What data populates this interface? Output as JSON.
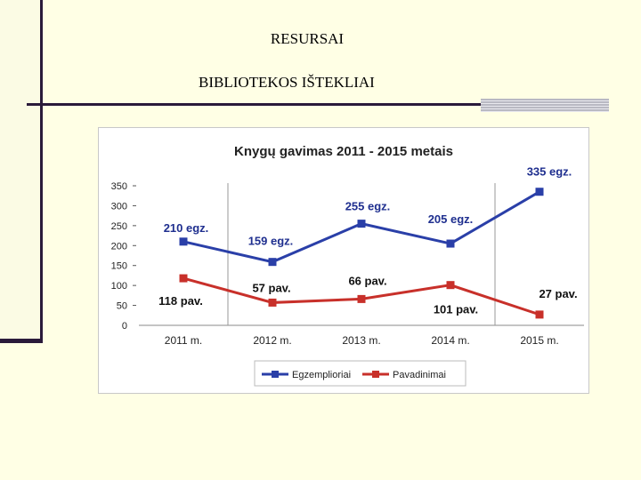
{
  "slide": {
    "title": "RESURSAI",
    "subtitle": "BIBLIOTEKOS IŠTEKLIAI"
  },
  "colors": {
    "background": "#ffffe5",
    "accent": "#2a1a3a",
    "series1": "#2a3fa8",
    "series2": "#c8302a"
  },
  "chart_data": {
    "type": "line",
    "title": "Knygų gavimas 2011 - 2015 metais",
    "categories": [
      "2011 m.",
      "2012 m.",
      "2013 m.",
      "2014 m.",
      "2015 m."
    ],
    "ylim": [
      0,
      350
    ],
    "yticks": [
      "0",
      "50",
      "100",
      "150",
      "200",
      "250",
      "300",
      "350"
    ],
    "grid": false,
    "legend": "bottom",
    "series": [
      {
        "name": "Egzemplioriai",
        "values": [
          210,
          159,
          255,
          205,
          335
        ],
        "labels": [
          "210 egz.",
          "159 egz.",
          "255 egz.",
          "205 egz.",
          "335 egz."
        ]
      },
      {
        "name": "Pavadinimai",
        "values": [
          118,
          57,
          66,
          101,
          27
        ],
        "labels": [
          "118 pav.",
          "57 pav.",
          "66 pav.",
          "101 pav.",
          "27 pav."
        ]
      }
    ]
  }
}
